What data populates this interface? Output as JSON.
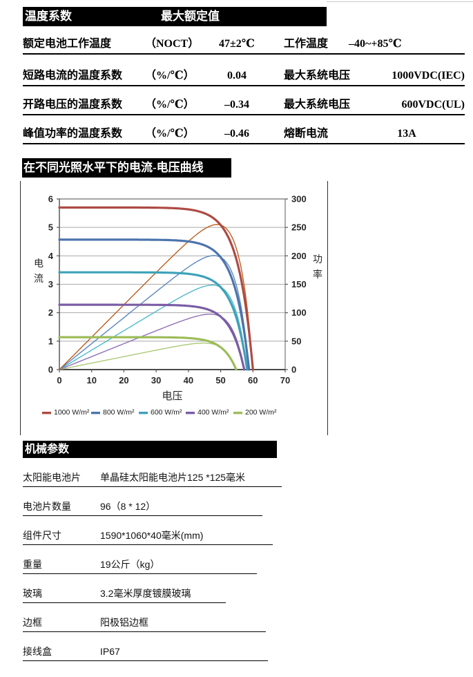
{
  "temp_table": {
    "header": {
      "col1": "温度系数",
      "col2": "最大额定值"
    },
    "rows": [
      {
        "label": "额定电池工作温度",
        "param": "（NOCT）",
        "value": "47±2℃",
        "label2": "工作温度",
        "value2": "–40~+85℃"
      },
      {
        "label": "短路电流的温度系数",
        "param": "（%/℃）",
        "value": "0.04",
        "label2": "最大系统电压",
        "value2": "1000VDC(IEC)"
      },
      {
        "label": "开路电压的温度系数",
        "param": "（%/℃）",
        "value": "–0.34",
        "label2": "最大系统电压",
        "value2": "600VDC(UL)"
      },
      {
        "label": "峰值功率的温度系数",
        "param": "（%/℃）",
        "value": "–0.46",
        "label2": "熔断电流",
        "value2": "13A"
      }
    ]
  },
  "chart_section": {
    "title": "在不同光照水平下的电流-电压曲线"
  },
  "chart_data": {
    "type": "line",
    "title": "在不同光照水平下的电流-电压曲线",
    "xlabel": "电压",
    "ylabel_left": "电流",
    "ylabel_right": "功率",
    "xlim": [
      0,
      70
    ],
    "ylim_left": [
      0,
      6
    ],
    "ylim_right": [
      0,
      300
    ],
    "x_ticks": [
      0,
      10,
      20,
      30,
      40,
      50,
      60,
      70
    ],
    "y_ticks_left": [
      0,
      1,
      2,
      3,
      4,
      5,
      6
    ],
    "y_ticks_right": [
      0,
      50,
      100,
      150,
      200,
      250,
      300
    ],
    "grid": "horizontal",
    "legend_position": "bottom",
    "series": [
      {
        "name": "1000 W/m²",
        "isc": 5.7,
        "voc": 60.0,
        "vmp": 48.5,
        "pmax": 260,
        "color": "#AE4A44",
        "power_color": "#BA5E1D"
      },
      {
        "name": "800 W/m²",
        "isc": 4.57,
        "voc": 58.8,
        "vmp": 49.0,
        "pmax": 207,
        "color": "#4C74AC",
        "power_color": "#5B87C0"
      },
      {
        "name": "600 W/m²",
        "isc": 3.42,
        "voc": 58.2,
        "vmp": 48.5,
        "pmax": 155,
        "color": "#3DA2B8",
        "power_color": "#4EB8CE"
      },
      {
        "name": "400 W/m²",
        "isc": 2.28,
        "voc": 57.3,
        "vmp": 48.0,
        "pmax": 102,
        "color": "#7A5DA4",
        "power_color": "#8F6FB8"
      },
      {
        "name": "200 W/m²",
        "isc": 1.14,
        "voc": 54.8,
        "vmp": 46.5,
        "pmax": 50,
        "color": "#9CBC59",
        "power_color": "#A9C973"
      }
    ]
  },
  "mech_table": {
    "header": "机械参数",
    "rows": [
      {
        "label": "太阳能电池片",
        "value": "单晶硅太阳能电池片125 *125毫米"
      },
      {
        "label": "电池片数量",
        "value": "96（8 * 12）"
      },
      {
        "label": "组件尺寸",
        "value": "1590*1060*40毫米(mm)"
      },
      {
        "label": "重量",
        "value": "19公斤（kg）"
      },
      {
        "label": "玻璃",
        "value": "3.2毫米厚度镀膜玻璃"
      },
      {
        "label": "边框",
        "value": "阳极铝边框"
      },
      {
        "label": "接线盒",
        "value": "IP67"
      }
    ]
  }
}
